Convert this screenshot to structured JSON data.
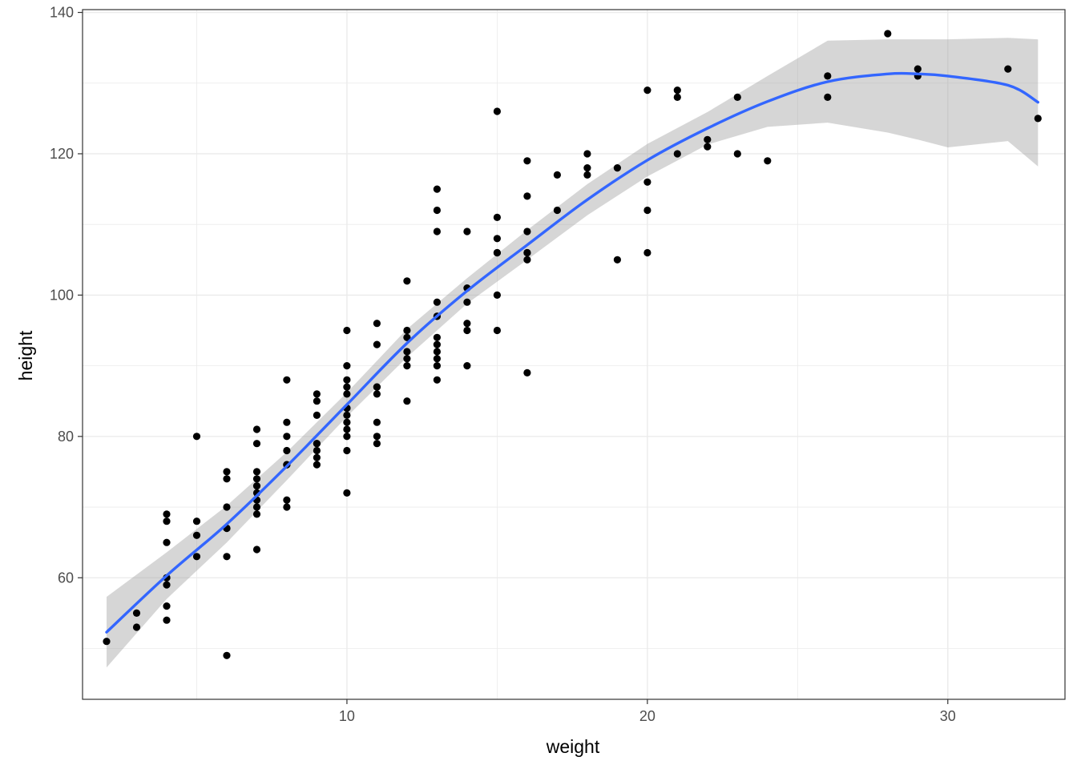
{
  "chart_data": {
    "type": "scatter",
    "title": "",
    "xlabel": "weight",
    "ylabel": "height",
    "xlim": [
      1.2,
      33.9
    ],
    "ylim": [
      42.8,
      140.4
    ],
    "x_ticks": [
      10,
      20,
      30
    ],
    "y_ticks": [
      60,
      80,
      100,
      120,
      140
    ],
    "grid": true,
    "legend": "none",
    "colors": {
      "points": "#000000",
      "smooth_line": "#3366ff",
      "confidence_band": "#999999",
      "grid_major": "#ebebeb",
      "panel_border": "#333333"
    },
    "series": [
      {
        "type": "points",
        "x": [
          2,
          3,
          3,
          4,
          4,
          4,
          4,
          4,
          4,
          4,
          4,
          5,
          5,
          5,
          5,
          6,
          6,
          6,
          6,
          6,
          6,
          6,
          7,
          7,
          7,
          7,
          7,
          7,
          7,
          7,
          7,
          7,
          8,
          8,
          8,
          8,
          8,
          8,
          8,
          8,
          9,
          9,
          9,
          9,
          9,
          9,
          9,
          9,
          10,
          10,
          10,
          10,
          10,
          10,
          10,
          10,
          10,
          10,
          10,
          10,
          10,
          11,
          11,
          11,
          11,
          11,
          11,
          11,
          11,
          12,
          12,
          12,
          12,
          12,
          12,
          12,
          13,
          13,
          13,
          13,
          13,
          13,
          13,
          13,
          13,
          13,
          13,
          13,
          14,
          14,
          14,
          14,
          14,
          14,
          15,
          15,
          15,
          15,
          15,
          15,
          15,
          16,
          16,
          16,
          16,
          16,
          16,
          16,
          17,
          17,
          18,
          18,
          18,
          19,
          19,
          20,
          20,
          20,
          20,
          21,
          21,
          21,
          22,
          22,
          23,
          23,
          24,
          26,
          26,
          28,
          29,
          29,
          32,
          33
        ],
        "y": [
          51,
          55,
          53,
          69,
          68,
          65,
          60,
          59,
          56,
          54,
          60,
          80,
          68,
          66,
          63,
          75,
          74,
          70,
          67,
          63,
          49,
          67,
          81,
          79,
          75,
          74,
          73,
          71,
          70,
          69,
          64,
          72,
          88,
          82,
          80,
          78,
          76,
          71,
          70,
          76,
          86,
          85,
          83,
          79,
          78,
          77,
          76,
          79,
          95,
          90,
          88,
          87,
          86,
          84,
          83,
          82,
          81,
          80,
          78,
          72,
          84,
          96,
          93,
          87,
          86,
          82,
          80,
          79,
          87,
          102,
          95,
          94,
          91,
          90,
          85,
          92,
          115,
          112,
          109,
          99,
          97,
          94,
          93,
          92,
          91,
          90,
          88,
          97,
          109,
          101,
          99,
          96,
          95,
          90,
          126,
          111,
          108,
          106,
          100,
          95,
          106,
          119,
          114,
          109,
          106,
          105,
          89,
          106,
          117,
          112,
          120,
          118,
          117,
          118,
          105,
          129,
          116,
          112,
          106,
          129,
          128,
          120,
          122,
          121,
          128,
          120,
          119,
          131,
          128,
          137,
          132,
          131,
          132,
          125
        ]
      },
      {
        "type": "smooth",
        "x": [
          2,
          4,
          6,
          8,
          10,
          12,
          14,
          16,
          18,
          20,
          22,
          24,
          26,
          28,
          29,
          30,
          32,
          33
        ],
        "y": [
          52.3,
          60.3,
          67.6,
          75.8,
          84.5,
          93.2,
          100.6,
          107.1,
          113.5,
          119.1,
          123.6,
          127.4,
          130.2,
          131.3,
          131.3,
          131,
          129.7,
          127.3
        ]
      },
      {
        "type": "confidence-band",
        "x": [
          2,
          4,
          6,
          8,
          10,
          12,
          14,
          16,
          18,
          20,
          22,
          24,
          26,
          28,
          29,
          30,
          32,
          33
        ],
        "lower": [
          47.3,
          57,
          65,
          73.8,
          82.8,
          91.2,
          98.8,
          105,
          111.3,
          116.8,
          121.3,
          123.8,
          124.4,
          123,
          122,
          120.9,
          121.8,
          118.2
        ],
        "upper": [
          57.3,
          63.6,
          70.2,
          77.8,
          86.2,
          95.2,
          102.4,
          109.2,
          115.7,
          121.4,
          125.9,
          131,
          136,
          136.2,
          136.2,
          136.2,
          136.4,
          136.2
        ]
      }
    ]
  }
}
